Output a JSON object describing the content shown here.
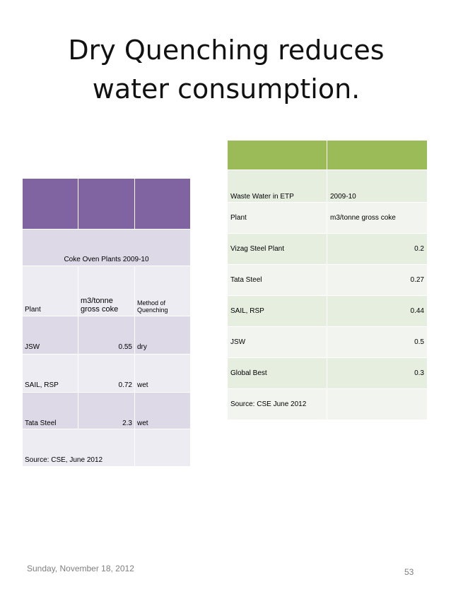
{
  "slide": {
    "title_line1": "Dry Quenching reduces",
    "title_line2": "water consumption.",
    "footer_date": "Sunday, November 18, 2012",
    "page_number": "53"
  },
  "left_table": {
    "caption": "Coke Oven Plants 2009-10",
    "columns": [
      "Plant",
      "m3/tonne gross coke",
      "Method of Quenching"
    ],
    "rows": [
      {
        "plant": "JSW",
        "value": "0.55",
        "method": "dry"
      },
      {
        "plant": "SAIL, RSP",
        "value": "0.72",
        "method": "wet"
      },
      {
        "plant": "Tata Steel",
        "value": "2.3",
        "method": "wet"
      }
    ],
    "source": "Source: CSE, June 2012"
  },
  "right_table": {
    "caption": "Waste Water in ETP",
    "year": "2009-10",
    "columns": [
      "Plant",
      "m3/tonne gross coke"
    ],
    "rows": [
      {
        "plant": "Vizag Steel Plant",
        "value": "0.2"
      },
      {
        "plant": "Tata Steel",
        "value": "0.27"
      },
      {
        "plant": "SAIL, RSP",
        "value": "0.44"
      },
      {
        "plant": "JSW",
        "value": "0.5"
      },
      {
        "plant": "Global Best",
        "value": "0.3"
      }
    ],
    "source": "Source: CSE June 2012"
  },
  "colors": {
    "left_header": "#8064a2",
    "left_band": "#ddd9e7",
    "right_header": "#9bbb59",
    "right_band": "#e6eee0"
  }
}
